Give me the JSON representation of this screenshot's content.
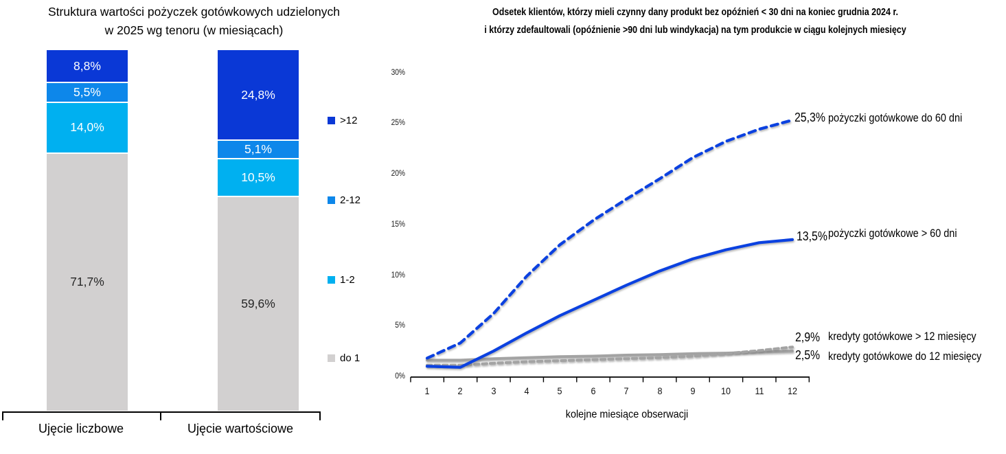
{
  "chart_data": [
    {
      "type": "bar",
      "stacked": true,
      "title": "Struktura wartości pożyczek gotówkowych udzielonych w 2025 wg tenoru (w miesiącach)",
      "title_lines": [
        "Struktura wartości pożyczek gotówkowych udzielonych",
        "w 2025 wg tenoru (w miesiącach)"
      ],
      "categories": [
        "Ujęcie liczbowe",
        "Ujęcie wartościowe"
      ],
      "ylim": [
        0,
        100
      ],
      "unit": "%",
      "series": [
        {
          "name": "do 1",
          "color": "#d2d0d0",
          "text_color": "#262626",
          "values": [
            71.7,
            59.6
          ],
          "labels": [
            "71,7%",
            "59,6%"
          ]
        },
        {
          "name": "1-2",
          "color": "#00b0f0",
          "text_color": "#ffffff",
          "values": [
            14.0,
            10.5
          ],
          "labels": [
            "14,0%",
            "10,5%"
          ]
        },
        {
          "name": "2-12",
          "color": "#0d87ea",
          "text_color": "#ffffff",
          "values": [
            5.5,
            5.1
          ],
          "labels": [
            "5,5%",
            "5,1%"
          ]
        },
        {
          "name": ">12",
          "color": "#0a38d6",
          "text_color": "#ffffff",
          "values": [
            8.8,
            24.8
          ],
          "labels": [
            "8,8%",
            "24,8%"
          ]
        }
      ],
      "legend_position": "right"
    },
    {
      "type": "line",
      "title": "Odsetek klientów, którzy mieli czynny dany produkt bez opóźnień < 30 dni na koniec grudnia 2024 r. i którzy zdefaultowali (opóźnienie >90 dni lub windykacja) na tym produkcie w ciągu kolejnych miesięcy",
      "title_lines": [
        "Odsetek klientów, którzy mieli czynny dany produkt bez opóźnień < 30 dni na koniec grudnia 2024 r.",
        "i którzy zdefaultowali (opóźnienie >90 dni lub windykacja) na tym produkcie w ciągu kolejnych miesięcy"
      ],
      "xlabel": "kolejne miesiące obserwacji",
      "x": [
        1,
        2,
        3,
        4,
        5,
        6,
        7,
        8,
        9,
        10,
        11,
        12
      ],
      "ylim": [
        0,
        30
      ],
      "grid": false,
      "y_ticks": [
        {
          "label": "30%",
          "value": 30
        },
        {
          "label": "25%",
          "value": 25
        },
        {
          "label": "20%",
          "value": 20
        },
        {
          "label": "15%",
          "value": 15
        },
        {
          "label": "10%",
          "value": 10
        },
        {
          "label": "5%",
          "value": 5
        },
        {
          "label": "0%",
          "value": 0
        }
      ],
      "series": [
        {
          "name": "pożyczki gotówkowe do 60 dni",
          "style": "dashed",
          "color": "#0b41e0",
          "end_label": "25,3%",
          "values": [
            1.8,
            3.3,
            6.2,
            9.9,
            13.0,
            15.4,
            17.5,
            19.5,
            21.6,
            23.2,
            24.4,
            25.3
          ]
        },
        {
          "name": "pożyczki gotówkowe > 60 dni",
          "style": "solid",
          "color": "#0b41e0",
          "end_label": "13,5%",
          "values": [
            1.0,
            0.9,
            2.5,
            4.3,
            6.0,
            7.5,
            9.0,
            10.4,
            11.6,
            12.5,
            13.2,
            13.5
          ]
        },
        {
          "name": "kredyty gotówkowe > 12 miesięcy",
          "style": "dashed",
          "color": "#a3a3a3",
          "end_label": "2,9%",
          "values": [
            1.1,
            1.1,
            1.3,
            1.45,
            1.55,
            1.65,
            1.75,
            1.85,
            2.0,
            2.25,
            2.55,
            2.9
          ]
        },
        {
          "name": "kredyty gotówkowe do 12 miesięcy",
          "style": "solid",
          "color": "#a3a3a3",
          "end_label": "2,5%",
          "values": [
            1.6,
            1.6,
            1.75,
            1.85,
            1.95,
            2.0,
            2.1,
            2.15,
            2.25,
            2.3,
            2.4,
            2.5
          ]
        }
      ]
    }
  ]
}
